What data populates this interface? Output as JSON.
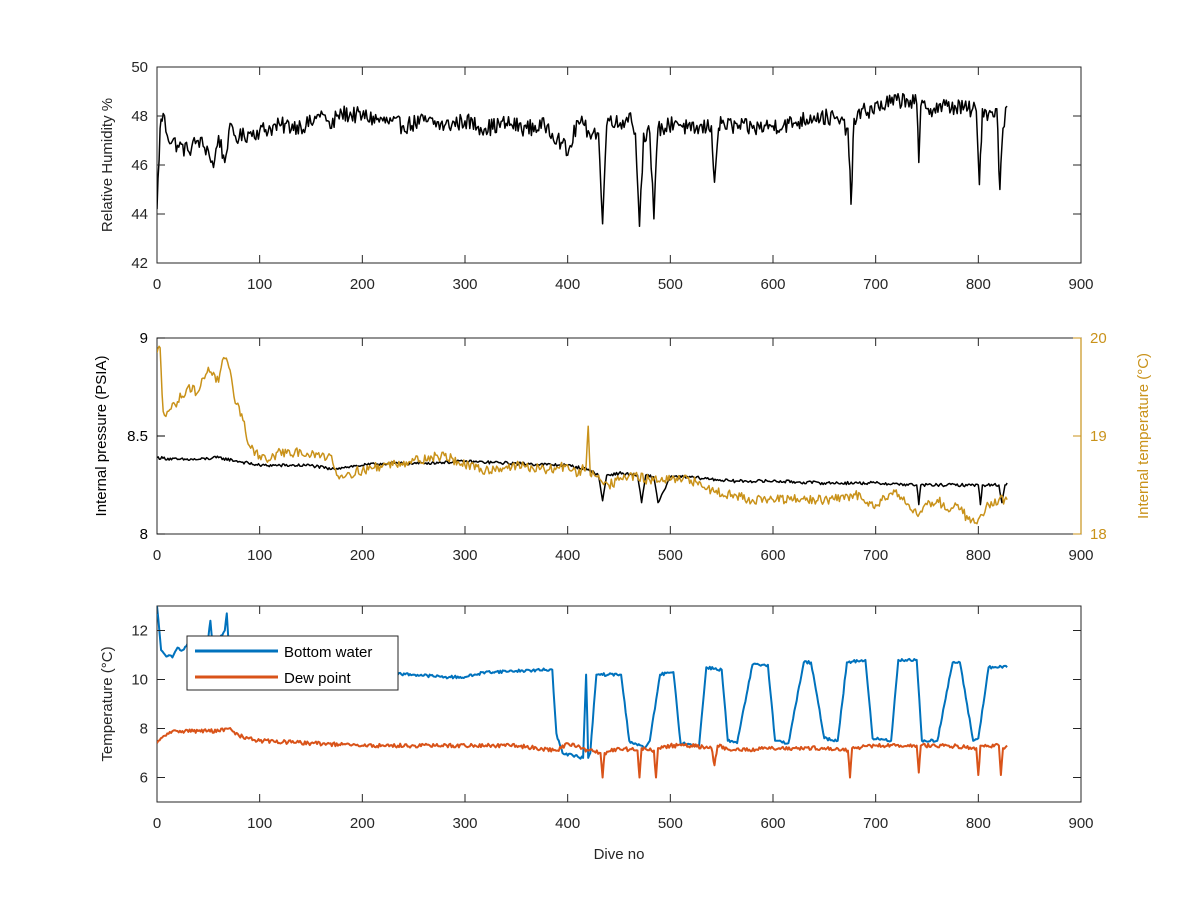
{
  "chart_data": [
    {
      "type": "line",
      "xlabel": "",
      "ylabel": "Relative Humidity %",
      "xlim": [
        0,
        900
      ],
      "ylim": [
        42,
        50
      ],
      "xticks": [
        0,
        100,
        200,
        300,
        400,
        500,
        600,
        700,
        800,
        900
      ],
      "yticks": [
        42,
        44,
        46,
        48,
        50
      ],
      "grid": false,
      "series": [
        {
          "color": "#000000",
          "axis": "left",
          "noise": 0.35,
          "x": [
            0,
            3,
            6,
            10,
            20,
            30,
            40,
            50,
            55,
            60,
            66,
            70,
            80,
            90,
            100,
            120,
            140,
            150,
            155,
            160,
            165,
            170,
            175,
            180,
            200,
            220,
            240,
            260,
            280,
            300,
            320,
            340,
            360,
            380,
            390,
            395,
            400,
            410,
            420,
            430,
            434,
            438,
            442,
            450,
            460,
            466,
            470,
            474,
            480,
            484,
            488,
            495,
            505,
            520,
            540,
            543,
            547,
            550,
            560,
            580,
            600,
            620,
            640,
            660,
            673,
            676,
            679,
            690,
            710,
            730,
            740,
            742,
            744,
            750,
            770,
            790,
            798,
            801,
            804,
            810,
            818,
            821,
            824,
            828
          ],
          "y": [
            44.2,
            47.5,
            48.1,
            47.2,
            46.8,
            46.6,
            47.0,
            46.6,
            45.9,
            47.2,
            46.1,
            47.4,
            47.1,
            47.3,
            47.4,
            47.6,
            47.6,
            47.7,
            47.9,
            48.2,
            47.8,
            47.5,
            48.0,
            48.1,
            48.0,
            47.8,
            47.6,
            47.8,
            47.6,
            47.8,
            47.5,
            47.7,
            47.5,
            47.6,
            47.1,
            46.9,
            46.4,
            47.8,
            47.4,
            47.3,
            43.6,
            47.6,
            48.0,
            47.6,
            48.1,
            47.3,
            43.5,
            47.3,
            47.3,
            43.8,
            47.5,
            47.5,
            47.8,
            47.4,
            47.6,
            45.3,
            47.5,
            47.7,
            47.6,
            47.5,
            47.6,
            47.7,
            48.0,
            47.9,
            47.5,
            44.4,
            47.9,
            48.2,
            48.5,
            48.7,
            48.5,
            46.1,
            48.4,
            48.3,
            48.4,
            48.3,
            48.2,
            45.2,
            48.3,
            48.1,
            48.3,
            45.0,
            47.5,
            48.4
          ]
        }
      ]
    },
    {
      "type": "line",
      "xlabel": "",
      "ylabel": "Internal pressure (PSIA)",
      "y2label": "Internal temperature (°C)",
      "xlim": [
        0,
        900
      ],
      "ylim": [
        8,
        9
      ],
      "y2lim": [
        18,
        20
      ],
      "xticks": [
        0,
        100,
        200,
        300,
        400,
        500,
        600,
        700,
        800,
        900
      ],
      "yticks": [
        8,
        8.5,
        9
      ],
      "y2ticks": [
        18,
        19,
        20
      ],
      "grid": false,
      "series": [
        {
          "color": "#000000",
          "axis": "left",
          "noise": 0.008,
          "x": [
            0,
            20,
            40,
            60,
            80,
            100,
            120,
            150,
            170,
            180,
            200,
            220,
            250,
            300,
            350,
            400,
            420,
            430,
            434,
            438,
            450,
            468,
            472,
            476,
            484,
            488,
            500,
            520,
            540,
            560,
            600,
            650,
            700,
            740,
            742,
            744,
            760,
            800,
            802,
            804,
            820,
            823,
            826,
            828
          ],
          "y": [
            8.39,
            8.38,
            8.38,
            8.39,
            8.37,
            8.35,
            8.35,
            8.35,
            8.33,
            8.34,
            8.35,
            8.36,
            8.36,
            8.37,
            8.36,
            8.35,
            8.33,
            8.3,
            8.17,
            8.3,
            8.31,
            8.3,
            8.16,
            8.3,
            8.29,
            8.16,
            8.29,
            8.29,
            8.28,
            8.27,
            8.27,
            8.26,
            8.26,
            8.25,
            8.15,
            8.25,
            8.25,
            8.25,
            8.15,
            8.25,
            8.25,
            8.16,
            8.25,
            8.26
          ]
        },
        {
          "color": "#C9921A",
          "axis": "right",
          "noise": 0.05,
          "x": [
            0,
            3,
            6,
            10,
            20,
            30,
            40,
            50,
            60,
            65,
            70,
            75,
            80,
            90,
            100,
            110,
            120,
            130,
            140,
            150,
            160,
            170,
            175,
            180,
            200,
            220,
            250,
            280,
            300,
            320,
            350,
            380,
            400,
            410,
            418,
            420,
            422,
            430,
            440,
            450,
            460,
            480,
            500,
            520,
            540,
            560,
            580,
            600,
            620,
            640,
            660,
            680,
            700,
            720,
            730,
            740,
            750,
            760,
            770,
            780,
            790,
            800,
            810,
            820,
            828
          ],
          "y": [
            19.85,
            19.9,
            19.25,
            19.25,
            19.35,
            19.5,
            19.45,
            19.7,
            19.55,
            19.8,
            19.7,
            19.4,
            19.3,
            18.9,
            18.8,
            18.75,
            18.85,
            18.8,
            18.85,
            18.8,
            18.8,
            18.8,
            18.6,
            18.6,
            18.65,
            18.7,
            18.75,
            18.8,
            18.7,
            18.65,
            18.7,
            18.65,
            18.7,
            18.6,
            18.7,
            19.1,
            18.6,
            18.6,
            18.5,
            18.55,
            18.6,
            18.55,
            18.55,
            18.55,
            18.45,
            18.4,
            18.35,
            18.35,
            18.35,
            18.35,
            18.35,
            18.4,
            18.3,
            18.45,
            18.3,
            18.2,
            18.3,
            18.35,
            18.25,
            18.3,
            18.15,
            18.15,
            18.3,
            18.35,
            18.35
          ]
        }
      ]
    },
    {
      "type": "line",
      "xlabel": "Dive no",
      "ylabel": "Temperature (°C)",
      "xlim": [
        0,
        900
      ],
      "ylim": [
        5,
        13
      ],
      "xticks": [
        0,
        100,
        200,
        300,
        400,
        500,
        600,
        700,
        800,
        900
      ],
      "yticks": [
        6,
        8,
        10,
        12
      ],
      "grid": false,
      "legend_position": "top-left",
      "series": [
        {
          "name": "Bottom water",
          "color": "#0072BD",
          "axis": "left",
          "noise": 0.06,
          "x": [
            0,
            4,
            8,
            15,
            20,
            25,
            30,
            40,
            50,
            52,
            54,
            60,
            66,
            68,
            70,
            72,
            80,
            100,
            150,
            200,
            250,
            280,
            300,
            320,
            350,
            385,
            389,
            395,
            405,
            415,
            418,
            420,
            422,
            428,
            440,
            452,
            460,
            475,
            480,
            490,
            503,
            510,
            528,
            535,
            550,
            556,
            565,
            580,
            595,
            602,
            615,
            630,
            637,
            650,
            663,
            672,
            690,
            697,
            715,
            722,
            740,
            745,
            760,
            775,
            782,
            795,
            800,
            810,
            820,
            828
          ],
          "y": [
            13,
            11.2,
            11.0,
            10.9,
            11.3,
            11.2,
            11.5,
            11.4,
            11.7,
            12.4,
            11.5,
            11.6,
            12.0,
            12.7,
            11.3,
            11.2,
            11.0,
            10.8,
            10.4,
            10.3,
            10.2,
            10.1,
            10.1,
            10.3,
            10.35,
            10.4,
            7.8,
            7.0,
            6.9,
            6.8,
            10.2,
            6.8,
            7.0,
            10.2,
            10.2,
            10.2,
            7.5,
            7.2,
            7.5,
            10.2,
            10.3,
            7.4,
            7.3,
            10.5,
            10.4,
            7.5,
            7.4,
            10.6,
            10.6,
            7.5,
            7.4,
            10.7,
            10.7,
            7.6,
            7.5,
            10.7,
            10.8,
            7.6,
            7.5,
            10.8,
            10.8,
            7.5,
            7.5,
            10.7,
            10.7,
            7.5,
            7.6,
            10.5,
            10.5,
            10.5
          ]
        },
        {
          "name": "Dew point",
          "color": "#D95319",
          "axis": "left",
          "noise": 0.08,
          "x": [
            0,
            10,
            20,
            40,
            60,
            70,
            80,
            100,
            150,
            200,
            250,
            300,
            350,
            390,
            400,
            420,
            432,
            434,
            436,
            450,
            468,
            470,
            472,
            484,
            486,
            488,
            500,
            520,
            540,
            543,
            546,
            560,
            600,
            650,
            673,
            675,
            677,
            700,
            740,
            742,
            744,
            770,
            798,
            800,
            802,
            820,
            822,
            824,
            828
          ],
          "y": [
            7.4,
            7.8,
            7.9,
            7.9,
            7.9,
            8.0,
            7.7,
            7.5,
            7.4,
            7.3,
            7.3,
            7.3,
            7.3,
            7.1,
            7.4,
            7.1,
            7.0,
            6.0,
            7.0,
            7.2,
            7.1,
            6.0,
            7.2,
            7.1,
            6.0,
            7.2,
            7.3,
            7.3,
            7.2,
            6.5,
            7.3,
            7.1,
            7.2,
            7.2,
            7.1,
            6.0,
            7.2,
            7.3,
            7.3,
            6.2,
            7.3,
            7.3,
            7.2,
            6.1,
            7.3,
            7.3,
            6.1,
            7.2,
            7.3
          ]
        }
      ]
    }
  ]
}
